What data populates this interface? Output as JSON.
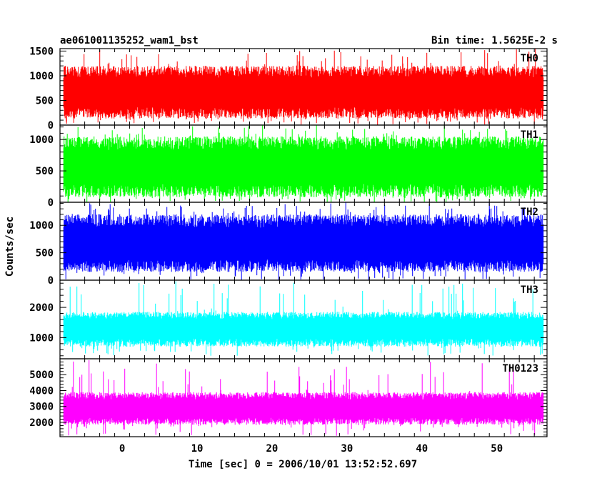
{
  "chart_data": {
    "type": "line",
    "title": "ae061001135252_wam1_bst",
    "subtitle": "Bin time: 1.5625E-2 s",
    "xlabel": "Time [sec] 0 = 2006/10/01 13:52:52.697",
    "ylabel": "Counts/sec",
    "xlim": [
      -8.3,
      56.7
    ],
    "xticks": [
      0,
      10,
      20,
      30,
      40,
      50
    ],
    "x_data_range": [
      -7.8,
      56.2
    ],
    "grid": false,
    "panels": [
      {
        "name": "TH0",
        "color": "#ff0000",
        "ylim": [
          0,
          1550
        ],
        "yticks": [
          0,
          500,
          1000,
          1500
        ],
        "baseline": 650,
        "band_low": 130,
        "band_high": 1200,
        "spike_min": 0,
        "spike_max": 1550
      },
      {
        "name": "TH1",
        "color": "#00ff00",
        "ylim": [
          0,
          1230
        ],
        "yticks": [
          0,
          500,
          1000
        ],
        "baseline": 560,
        "band_low": 80,
        "band_high": 1050,
        "spike_min": 0,
        "spike_max": 1230
      },
      {
        "name": "TH2",
        "color": "#0000ff",
        "ylim": [
          0,
          1420
        ],
        "yticks": [
          0,
          500,
          1000
        ],
        "baseline": 650,
        "band_low": 150,
        "band_high": 1200,
        "spike_min": 0,
        "spike_max": 1420
      },
      {
        "name": "TH3",
        "color": "#00ffff",
        "ylim": [
          300,
          2900
        ],
        "yticks": [
          1000,
          2000
        ],
        "baseline": 1300,
        "band_low": 700,
        "band_high": 1850,
        "spike_min": 400,
        "spike_max": 2900
      },
      {
        "name": "TH0123",
        "color": "#ff00ff",
        "ylim": [
          1100,
          6000
        ],
        "yticks": [
          2000,
          3000,
          4000,
          5000
        ],
        "baseline": 2850,
        "band_low": 1850,
        "band_high": 3900,
        "spike_min": 1100,
        "spike_max": 6000
      }
    ]
  }
}
